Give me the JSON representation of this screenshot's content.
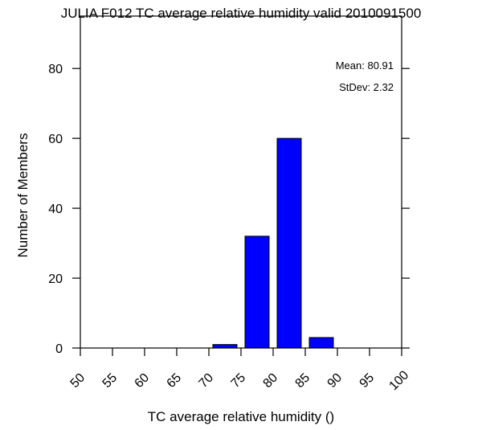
{
  "chart_data": {
    "type": "bar",
    "title": "JULIA F012 TC average relative humidity valid 2010091500",
    "xlabel": "TC average relative humidity ()",
    "ylabel": "Number of Members",
    "xlim": [
      50,
      100
    ],
    "ylim": [
      0,
      95
    ],
    "xticks": [
      "50",
      "55",
      "60",
      "65",
      "70",
      "75",
      "80",
      "85",
      "90",
      "95",
      "100"
    ],
    "yticks": [
      "0",
      "20",
      "40",
      "60",
      "80"
    ],
    "bars": [
      {
        "x0": 70,
        "x1": 75,
        "value": 1
      },
      {
        "x0": 75,
        "x1": 80,
        "value": 32
      },
      {
        "x0": 80,
        "x1": 85,
        "value": 60
      },
      {
        "x0": 85,
        "x1": 90,
        "value": 3
      }
    ],
    "stats": {
      "mean": "Mean: 80.91",
      "stdev": "StDev: 2.32"
    },
    "colors": {
      "bar": "#0000ff"
    },
    "grid": false
  }
}
